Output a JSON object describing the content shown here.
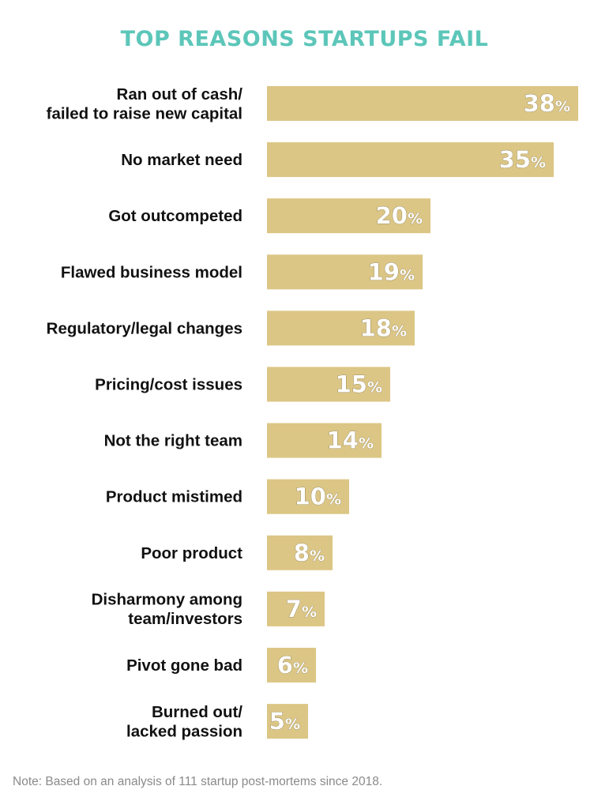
{
  "colors": {
    "title": "#5cc6b9",
    "bar": "#dcc685",
    "label": "#111111",
    "value_text": "#ffffff",
    "note": "#8a8a8a"
  },
  "chart_data": {
    "type": "bar",
    "orientation": "horizontal",
    "title": "TOP REASONS STARTUPS FAIL",
    "unit": "%",
    "categories": [
      [
        "Ran out of cash/",
        "failed to raise new capital"
      ],
      [
        "No market need"
      ],
      [
        "Got outcompeted"
      ],
      [
        "Flawed business model"
      ],
      [
        "Regulatory/legal changes"
      ],
      [
        "Pricing/cost issues"
      ],
      [
        "Not the right team"
      ],
      [
        "Product mistimed"
      ],
      [
        "Poor product"
      ],
      [
        "Disharmony among",
        "team/investors"
      ],
      [
        "Pivot gone bad"
      ],
      [
        "Burned out/",
        "lacked passion"
      ]
    ],
    "values": [
      38,
      35,
      20,
      19,
      18,
      15,
      14,
      10,
      8,
      7,
      6,
      5
    ],
    "xlim": [
      0,
      38
    ],
    "grid": false,
    "legend": "none"
  },
  "note": "Note: Based on an analysis of 111 startup post-mortems since 2018."
}
